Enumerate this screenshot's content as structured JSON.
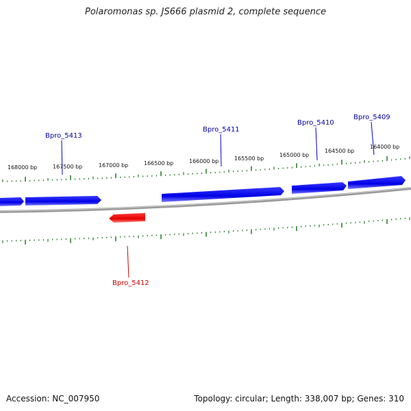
{
  "title": "Polaromonas sp. JS666 plasmid 2, complete sequence",
  "footer": {
    "accession_label": "Accession: NC_007950",
    "summary_label": "Topology: circular; Length: 338,007 bp; Genes: 310"
  },
  "colors": {
    "forward_gene": "#0000ee",
    "reverse_gene": "#ee0000",
    "backbone": "#808080",
    "tick": "#227722",
    "label_text": "#111111"
  },
  "ticks": [
    {
      "label": "168000 bp"
    },
    {
      "label": "167500 bp"
    },
    {
      "label": "167000 bp"
    },
    {
      "label": "166500 bp"
    },
    {
      "label": "166000 bp"
    },
    {
      "label": "165500 bp"
    },
    {
      "label": "165000 bp"
    },
    {
      "label": "164500 bp"
    },
    {
      "label": "164000 bp"
    }
  ],
  "genes": [
    {
      "name": "Bpro_5413",
      "strand": "+"
    },
    {
      "name": "Bpro_5412",
      "strand": "-"
    },
    {
      "name": "Bpro_5411",
      "strand": "+"
    },
    {
      "name": "Bpro_5410",
      "strand": "+"
    },
    {
      "name": "Bpro_5409",
      "strand": "+"
    }
  ]
}
